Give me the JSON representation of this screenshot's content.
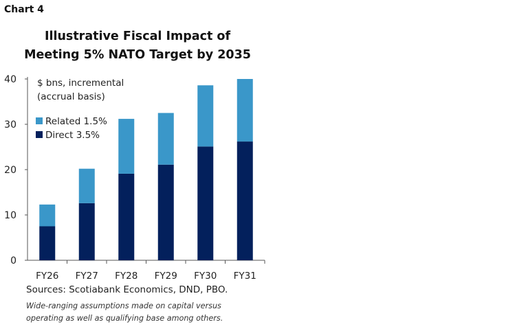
{
  "chart_label": "Chart 4",
  "chart_data": {
    "type": "bar",
    "stacked": true,
    "title": "Illustrative Fiscal Impact of Meeting 5% NATO Target by 2035",
    "ylabel": "$ bns, incremental (accrual basis)",
    "ylabel_lines": [
      "$ bns, incremental",
      "(accrual basis)"
    ],
    "categories": [
      "FY26",
      "FY27",
      "FY28",
      "FY29",
      "FY30",
      "FY31"
    ],
    "series": [
      {
        "name": "Direct 3.5%",
        "color": "#03205c",
        "values": [
          7.5,
          12.6,
          19.1,
          21.1,
          25.1,
          26.2
        ]
      },
      {
        "name": "Related 1.5%",
        "color": "#3a97c9",
        "values": [
          4.8,
          7.6,
          12.1,
          11.4,
          13.5,
          13.8
        ]
      }
    ],
    "ylim": [
      0,
      40
    ],
    "yticks": [
      0,
      10,
      20,
      30,
      40
    ],
    "grid": false,
    "legend_position": "top-left"
  },
  "source": "Sources: Scotiabank Economics, DND, PBO.",
  "note": "Wide-ranging assumptions made on capital versus operating as well as qualifying base among others."
}
